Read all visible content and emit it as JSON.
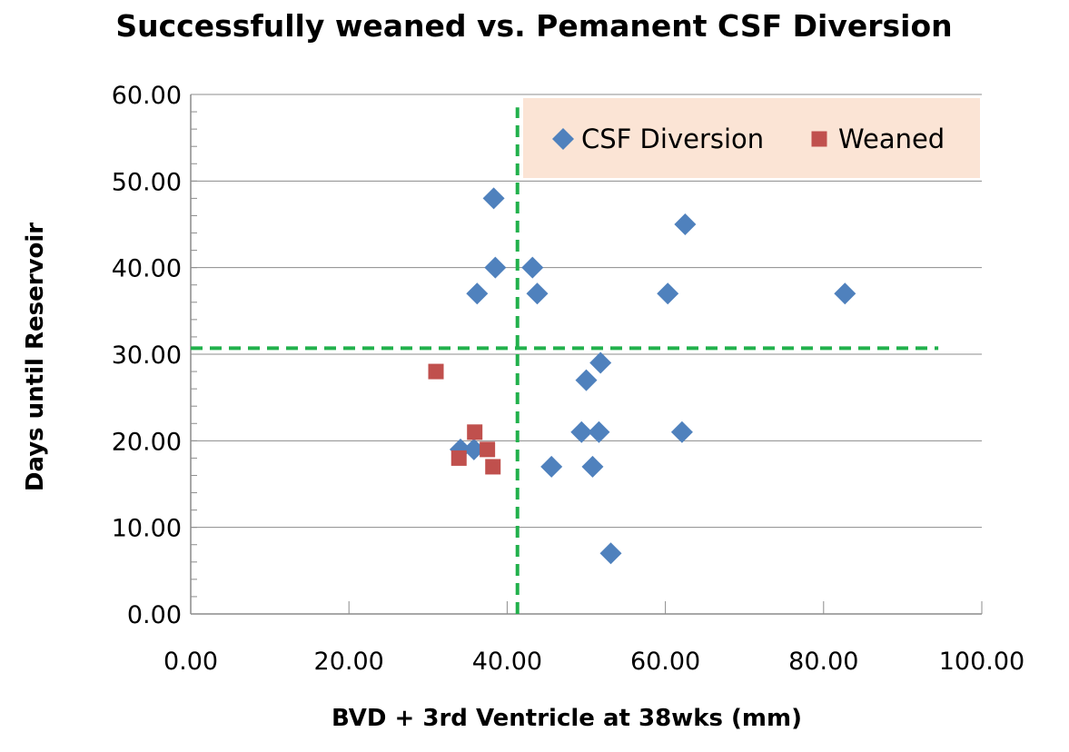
{
  "chart_data": {
    "type": "scatter",
    "title": "Successfully weaned vs. Pemanent CSF Diversion",
    "xlabel": "BVD + 3rd Ventricle at 38wks (mm)",
    "ylabel": "Days until Reservoir",
    "xlim": [
      0,
      100
    ],
    "ylim": [
      0,
      60
    ],
    "x_ticks": [
      "0.00",
      "20.00",
      "40.00",
      "60.00",
      "80.00",
      "100.00"
    ],
    "y_ticks": [
      "0.00",
      "10.00",
      "20.00",
      "30.00",
      "40.00",
      "50.00",
      "60.00"
    ],
    "grid": "horizontal",
    "legend_position": "top-right",
    "legend_background": "#fbe4d5",
    "series": [
      {
        "name": "CSF Diversion",
        "marker": "diamond",
        "color": "#4f81bd",
        "points": [
          {
            "x": 38.3,
            "y": 48
          },
          {
            "x": 38.5,
            "y": 40
          },
          {
            "x": 36.2,
            "y": 37
          },
          {
            "x": 43.2,
            "y": 40
          },
          {
            "x": 43.8,
            "y": 37
          },
          {
            "x": 62.5,
            "y": 45
          },
          {
            "x": 60.3,
            "y": 37
          },
          {
            "x": 82.7,
            "y": 37
          },
          {
            "x": 51.8,
            "y": 29
          },
          {
            "x": 50.0,
            "y": 27
          },
          {
            "x": 49.4,
            "y": 21
          },
          {
            "x": 51.6,
            "y": 21
          },
          {
            "x": 62.1,
            "y": 21
          },
          {
            "x": 45.6,
            "y": 17
          },
          {
            "x": 50.8,
            "y": 17
          },
          {
            "x": 53.1,
            "y": 7
          },
          {
            "x": 34.1,
            "y": 19
          },
          {
            "x": 35.8,
            "y": 19
          }
        ]
      },
      {
        "name": "Weaned",
        "marker": "square",
        "color": "#c0504d",
        "points": [
          {
            "x": 31.0,
            "y": 28
          },
          {
            "x": 35.9,
            "y": 21
          },
          {
            "x": 37.5,
            "y": 19
          },
          {
            "x": 33.9,
            "y": 18
          },
          {
            "x": 38.2,
            "y": 17
          }
        ]
      }
    ],
    "reference_lines": [
      {
        "orientation": "vertical",
        "x": 41.3,
        "y_from": 0,
        "y_to": 58.5,
        "color": "#22b14c",
        "style": "dashed"
      },
      {
        "orientation": "horizontal",
        "y": 30.7,
        "x_from": 0,
        "x_to": 94.5,
        "color": "#22b14c",
        "style": "dashed"
      }
    ]
  }
}
